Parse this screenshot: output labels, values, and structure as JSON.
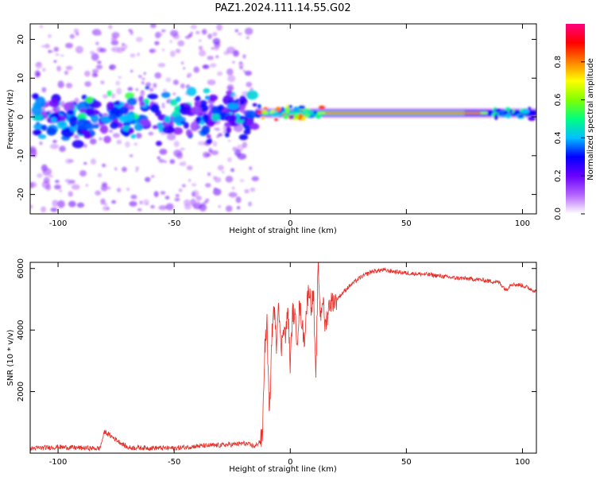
{
  "figure": {
    "title": "PAZ1.2024.111.14.55.G02"
  },
  "chart_data": [
    {
      "type": "heatmap",
      "title": "PAZ1.2024.111.14.55.G02",
      "xlabel": "Height of straight line (km)",
      "ylabel": "Frequency (Hz)",
      "xlim": [
        -112,
        106
      ],
      "ylim": [
        -25,
        24
      ],
      "xticks": [
        -100,
        -50,
        0,
        50,
        100
      ],
      "yticks": [
        -20,
        -10,
        0,
        10,
        20
      ],
      "grid": false,
      "colorbar": {
        "label": "Normalized spectral amplitude",
        "range": [
          0,
          1
        ],
        "ticks": [
          0.0,
          0.2,
          0.4,
          0.6,
          0.8
        ],
        "tick_labels": [
          "0.0",
          "0.2",
          "0.4",
          "0.6",
          "0.8"
        ],
        "colormap": [
          "#ffffff",
          "#b464ff",
          "#6a00ff",
          "#0000ff",
          "#00bfff",
          "#00ff80",
          "#80ff00",
          "#ffff00",
          "#ff8000",
          "#ff0000",
          "#ff0080"
        ]
      },
      "description_regions": [
        {
          "x_range": [
            -112,
            -15
          ],
          "freq_center": 0,
          "freq_spread": 24,
          "amplitude": 0.15,
          "pattern": "scattered"
        },
        {
          "x_range": [
            -110,
            -15
          ],
          "freq_center": 0,
          "freq_spread": 6,
          "amplitude": 0.3,
          "pattern": "clustered"
        },
        {
          "x_range": [
            -15,
            106
          ],
          "freq_center": 1,
          "freq_spread": 1,
          "amplitude": 0.9,
          "pattern": "narrow-line"
        }
      ]
    },
    {
      "type": "line",
      "xlabel": "Height of straight line (km)",
      "ylabel": "SNR (10 * v/v)",
      "xlim": [
        -112,
        106
      ],
      "ylim": [
        0,
        6200
      ],
      "xticks": [
        -100,
        -50,
        0,
        50,
        100
      ],
      "yticks": [
        2000,
        4000,
        6000
      ],
      "grid": false,
      "series": [
        {
          "color": "#e8302a",
          "x": [
            -112,
            -100,
            -90,
            -82,
            -80,
            -70,
            -60,
            -50,
            -40,
            -30,
            -25,
            -20,
            -15,
            -12,
            -11,
            -10,
            -9,
            -8,
            -7,
            -6,
            -5,
            -4,
            -3,
            -2,
            -1,
            0,
            1,
            2,
            3,
            4,
            5,
            6,
            7,
            8,
            9,
            10,
            11,
            12,
            13,
            14,
            15,
            17,
            20,
            25,
            30,
            35,
            40,
            50,
            60,
            70,
            80,
            90,
            93,
            95,
            100,
            106
          ],
          "y": [
            150,
            200,
            170,
            150,
            700,
            180,
            170,
            160,
            230,
            260,
            280,
            320,
            220,
            500,
            3400,
            4200,
            1000,
            3700,
            4800,
            3500,
            5100,
            3200,
            4200,
            3800,
            4700,
            2800,
            4600,
            4400,
            3700,
            4800,
            4300,
            3600,
            4700,
            5400,
            4800,
            5200,
            2200,
            6200,
            4400,
            5100,
            4100,
            4900,
            5000,
            5400,
            5700,
            5900,
            5950,
            5850,
            5800,
            5700,
            5650,
            5550,
            5300,
            5500,
            5450,
            5250
          ]
        }
      ]
    }
  ]
}
